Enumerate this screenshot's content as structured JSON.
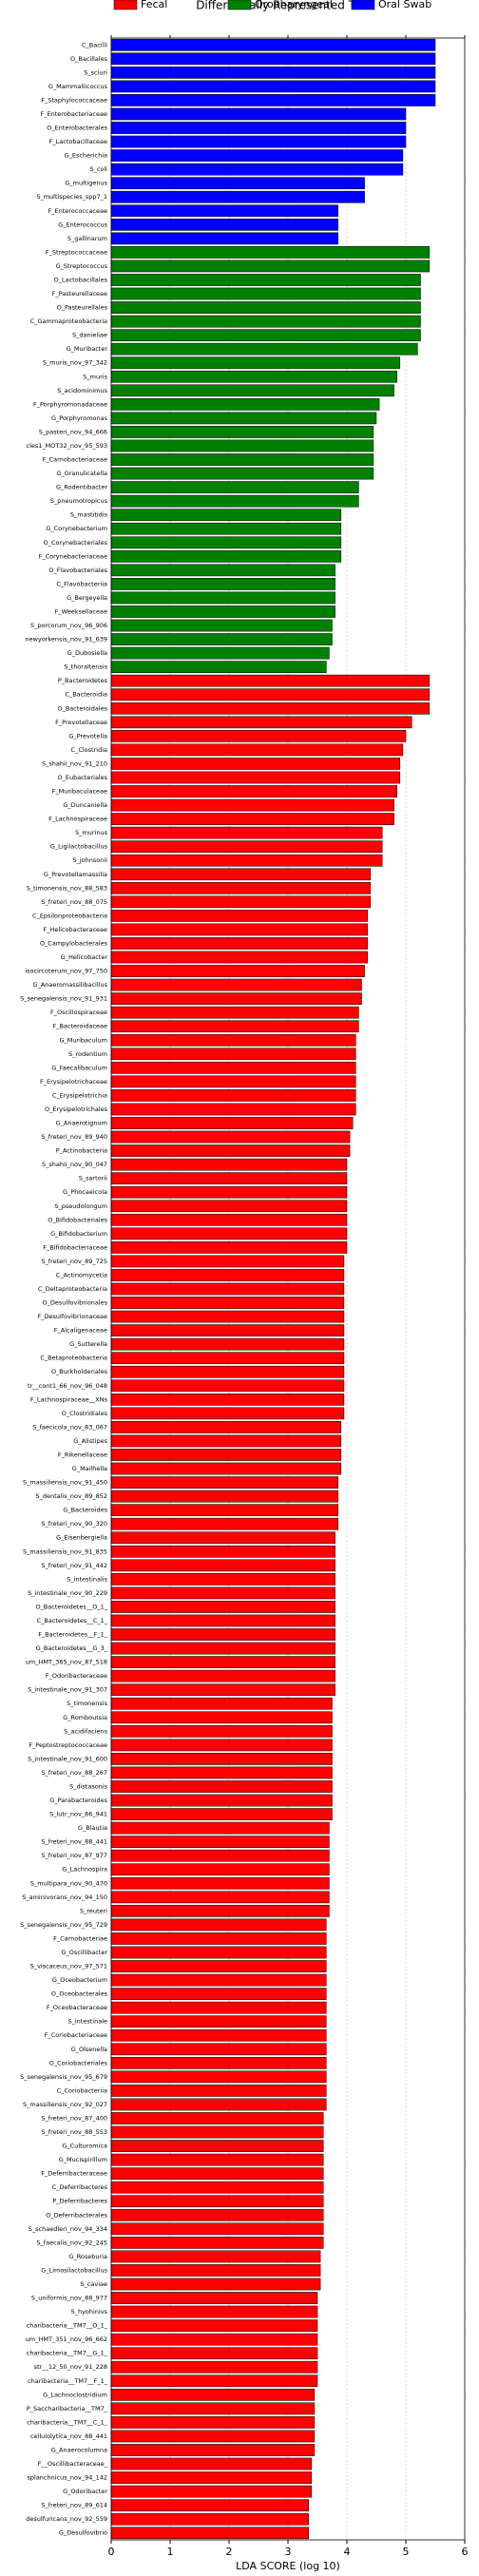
{
  "chart_data": {
    "type": "barh",
    "title": "Differentially Represented Taxa",
    "xlabel": "LDA SCORE (log 10)",
    "xlim": [
      0,
      6
    ],
    "xticks": [
      0,
      1,
      2,
      3,
      4,
      5,
      6
    ],
    "grid": true,
    "series": [
      {
        "name": "Oral Swab",
        "color": "#0000ff",
        "categories": [
          "C_Bacilli",
          "O_Bacillales",
          "S_sciuri",
          "G_Mammaliicoccus",
          "F_Staphylococcaceae",
          "F_Enterobacteriaceae",
          "O_Enterobacterales",
          "F_Lactobacillaceae",
          "G_Escherichia",
          "S_coli",
          "G_multigenus",
          "S_multispecies_spp7_1",
          "F_Enterococcaceae",
          "G_Enterococcus",
          "S_gallinarum"
        ],
        "values": [
          5.5,
          5.5,
          5.5,
          5.5,
          5.5,
          5.0,
          5.0,
          5.0,
          4.95,
          4.95,
          4.3,
          4.3,
          3.85,
          3.85,
          3.85
        ]
      },
      {
        "name": "Oropharyngeal",
        "color": "#008000",
        "categories": [
          "F_Streptococcaceae",
          "G_Streptococcus",
          "O_Lactobacillales",
          "F_Pasteurellaceae",
          "O_Pasteurellales",
          "C_Gammaproteobacteria",
          "S_danieliae",
          "G_Muribacter",
          "S_muris_nov_97_342",
          "S_muris",
          "S_acidominimus",
          "F_Porphyromonadaceae",
          "G_Porphyromonas",
          "S_pasteri_nov_94_666",
          "cles1_MOT32_nov_95_593",
          "F_Carnobacteriaceae",
          "G_Granulicatella",
          "G_Rodentibacter",
          "S_pneumotropicus",
          "S_mastitidis",
          "G_Corynebacterium",
          "O_Corynebacteriales",
          "F_Corynebacteriaceae",
          "O_Flavobacteriales",
          "C_Flavobacteriia",
          "G_Bergeyella",
          "F_Weeksellaceae",
          "S_porcorum_nov_96_906",
          "newyorkensis_nov_91_639",
          "G_Dubosiella",
          "S_thoraltensis"
        ],
        "values": [
          5.4,
          5.4,
          5.25,
          5.25,
          5.25,
          5.25,
          5.25,
          5.2,
          4.9,
          4.85,
          4.8,
          4.55,
          4.5,
          4.45,
          4.45,
          4.45,
          4.45,
          4.2,
          4.2,
          3.9,
          3.9,
          3.9,
          3.9,
          3.8,
          3.8,
          3.8,
          3.8,
          3.75,
          3.75,
          3.7,
          3.65
        ]
      },
      {
        "name": "Fecal",
        "color": "#ff0000",
        "categories": [
          "P_Bacteroidetes",
          "C_Bacteroidia",
          "O_Bacteroidales",
          "F_Prevotellaceae",
          "G_Prevotella",
          "C_Clostridia",
          "S_shahii_nov_91_210",
          "O_Eubacteriales",
          "F_Muribaculaceae",
          "G_Duncaniella",
          "F_Lachnospiraceae",
          "S_murinus",
          "G_Ligilactobacillus",
          "S_johnsonii",
          "G_Prevotellamassilia",
          "S_timonensis_nov_88_583",
          "S_freteri_nov_88_075",
          "C_Epsilonproteobacteria",
          "F_Helicobacteraceae",
          "O_Campylobacterales",
          "G_Helicobacter",
          "isocircoterum_nov_97_750",
          "G_Anaeromassilibacillus",
          "S_senegalensis_nov_91_931",
          "F_Oscillospiraceae",
          "F_Bacteroidaceae",
          "G_Muribaculum",
          "S_rodentium",
          "G_Faecalibaculum",
          "F_Erysipelotrichaceae",
          "C_Erysipelotrichia",
          "O_Erysipelotrichales",
          "G_Anaerotignum",
          "S_freteri_nov_89_940",
          "P_Actinobacteria",
          "S_shahii_nov_90_047",
          "S_sartorii",
          "G_Phocaeicola",
          "S_pseudolongum",
          "O_Bifidobacteriales",
          "G_Bifidobacterium",
          "F_Bifidobacteriaceae",
          "S_freteri_nov_89_725",
          "C_Actinomycetia",
          "C_Deltaproteobacteria",
          "O_Desulfovibrionales",
          "F_Desulfovibrionaceae",
          "F_Alcaligenaceae",
          "G_Sutterella",
          "C_Betaproteobacteria",
          "O_Burkholderiales",
          "tr__cont1_66_nov_96_048",
          "F_Lachnospiraceae__XNs",
          "O_Clostridiales",
          "S_faecicola_nov_83_067",
          "G_Alistipes",
          "F_Rikenellaceae",
          "G_Mailhella",
          "S_massiliensis_nov_91_450",
          "S_dentalis_nov_89_852",
          "G_Bacteroides",
          "S_freteri_nov_90_320",
          "G_Eisenbergiella",
          "S_massiliensis_nov_91_835",
          "S_freteri_nov_91_442",
          "S_intestinalis",
          "S_intestinale_nov_90_229",
          "O_Bacteroidetes__O_1_",
          "C_Bacteroidetes__C_1_",
          "F_Bacteroidetes__F_1_",
          "G_Bacteroidetes__G_3_",
          "um_HMT_365_nov_87_518",
          "F_Odoribacteraceae",
          "S_intestinale_nov_91_307",
          "S_timonensis",
          "G_Romboutsia",
          "S_acidifaciens",
          "F_Peptostreptococcaceae",
          "S_intestinale_nov_91_600",
          "S_freteri_nov_88_267",
          "S_distasonis",
          "G_Parabacteroides",
          "S_lutr_nov_86_941",
          "G_Blautia",
          "S_freteri_nov_88_441",
          "S_freteri_nov_87_977",
          "G_Lachnospira",
          "S_multipara_nov_90_470",
          "S_aminivorans_nov_94_150",
          "S_reuteri",
          "S_senegalensis_nov_95_729",
          "F_Carnobacteriae",
          "G_Oscillibacter",
          "S_viscaceus_nov_97_571",
          "G_Oceobacterium",
          "O_Oceobacterales",
          "F_Oceobacteraceae",
          "S_intestinale",
          "F_Coriobacteriaceae",
          "G_Olsenella",
          "O_Coriobacteriales",
          "S_senegalensis_nov_95_679",
          "C_Coriobacteriia",
          "S_massiliensis_nov_92_027",
          "S_freteri_nov_87_400",
          "S_freteri_nov_88_553",
          "G_Culturomica",
          "G_Mucispirillum",
          "F_Deferribacteraceae",
          "C_Deferribacteres",
          "P_Deferribacteres",
          "O_Deferribacterales",
          "S_schaedleri_nov_94_334",
          "S_faecalis_nov_92_245",
          "G_Roseburia",
          "G_Limosilactobacillus",
          "S_caviae",
          "S_uniformis_nov_88_977",
          "S_hyohinivs",
          "charibacteria__TM7__O_1_",
          "um_HMT_351_nov_96_662",
          "charibacteria__TM7__G_1_",
          "str__12_50_nov_91_228",
          "charibacteria__TM7__F_1_",
          "G_Lachnoclostridium",
          "P_Saccharibacteria__TM7_",
          "charibacteria__TM7__C_1_",
          "cellulolytica_nov_88_441",
          "G_Anaerocolumna",
          "F__Oscillibacteraceae_",
          "splanchnicus_nov_94_142",
          "G_Odoribacter",
          "S_freteri_nov_89_614",
          "desulfuricans_nov_92_559",
          "G_Desulfovibrio"
        ],
        "values": [
          5.4,
          5.4,
          5.4,
          5.1,
          5.0,
          4.95,
          4.9,
          4.9,
          4.85,
          4.8,
          4.8,
          4.6,
          4.6,
          4.6,
          4.4,
          4.4,
          4.4,
          4.35,
          4.35,
          4.35,
          4.35,
          4.3,
          4.25,
          4.25,
          4.2,
          4.2,
          4.15,
          4.15,
          4.15,
          4.15,
          4.15,
          4.15,
          4.1,
          4.05,
          4.05,
          4.0,
          4.0,
          4.0,
          4.0,
          4.0,
          4.0,
          4.0,
          3.95,
          3.95,
          3.95,
          3.95,
          3.95,
          3.95,
          3.95,
          3.95,
          3.95,
          3.95,
          3.95,
          3.95,
          3.9,
          3.9,
          3.9,
          3.9,
          3.85,
          3.85,
          3.85,
          3.85,
          3.8,
          3.8,
          3.8,
          3.8,
          3.8,
          3.8,
          3.8,
          3.8,
          3.8,
          3.8,
          3.8,
          3.8,
          3.75,
          3.75,
          3.75,
          3.75,
          3.75,
          3.75,
          3.75,
          3.75,
          3.75,
          3.7,
          3.7,
          3.7,
          3.7,
          3.7,
          3.7,
          3.7,
          3.65,
          3.65,
          3.65,
          3.65,
          3.65,
          3.65,
          3.65,
          3.65,
          3.65,
          3.65,
          3.65,
          3.65,
          3.65,
          3.65,
          3.6,
          3.6,
          3.6,
          3.6,
          3.6,
          3.6,
          3.6,
          3.6,
          3.6,
          3.6,
          3.55,
          3.55,
          3.55,
          3.5,
          3.5,
          3.5,
          3.5,
          3.5,
          3.5,
          3.5,
          3.45,
          3.45,
          3.45,
          3.45,
          3.45,
          3.4,
          3.4,
          3.4,
          3.35,
          3.35,
          3.35
        ]
      }
    ]
  }
}
